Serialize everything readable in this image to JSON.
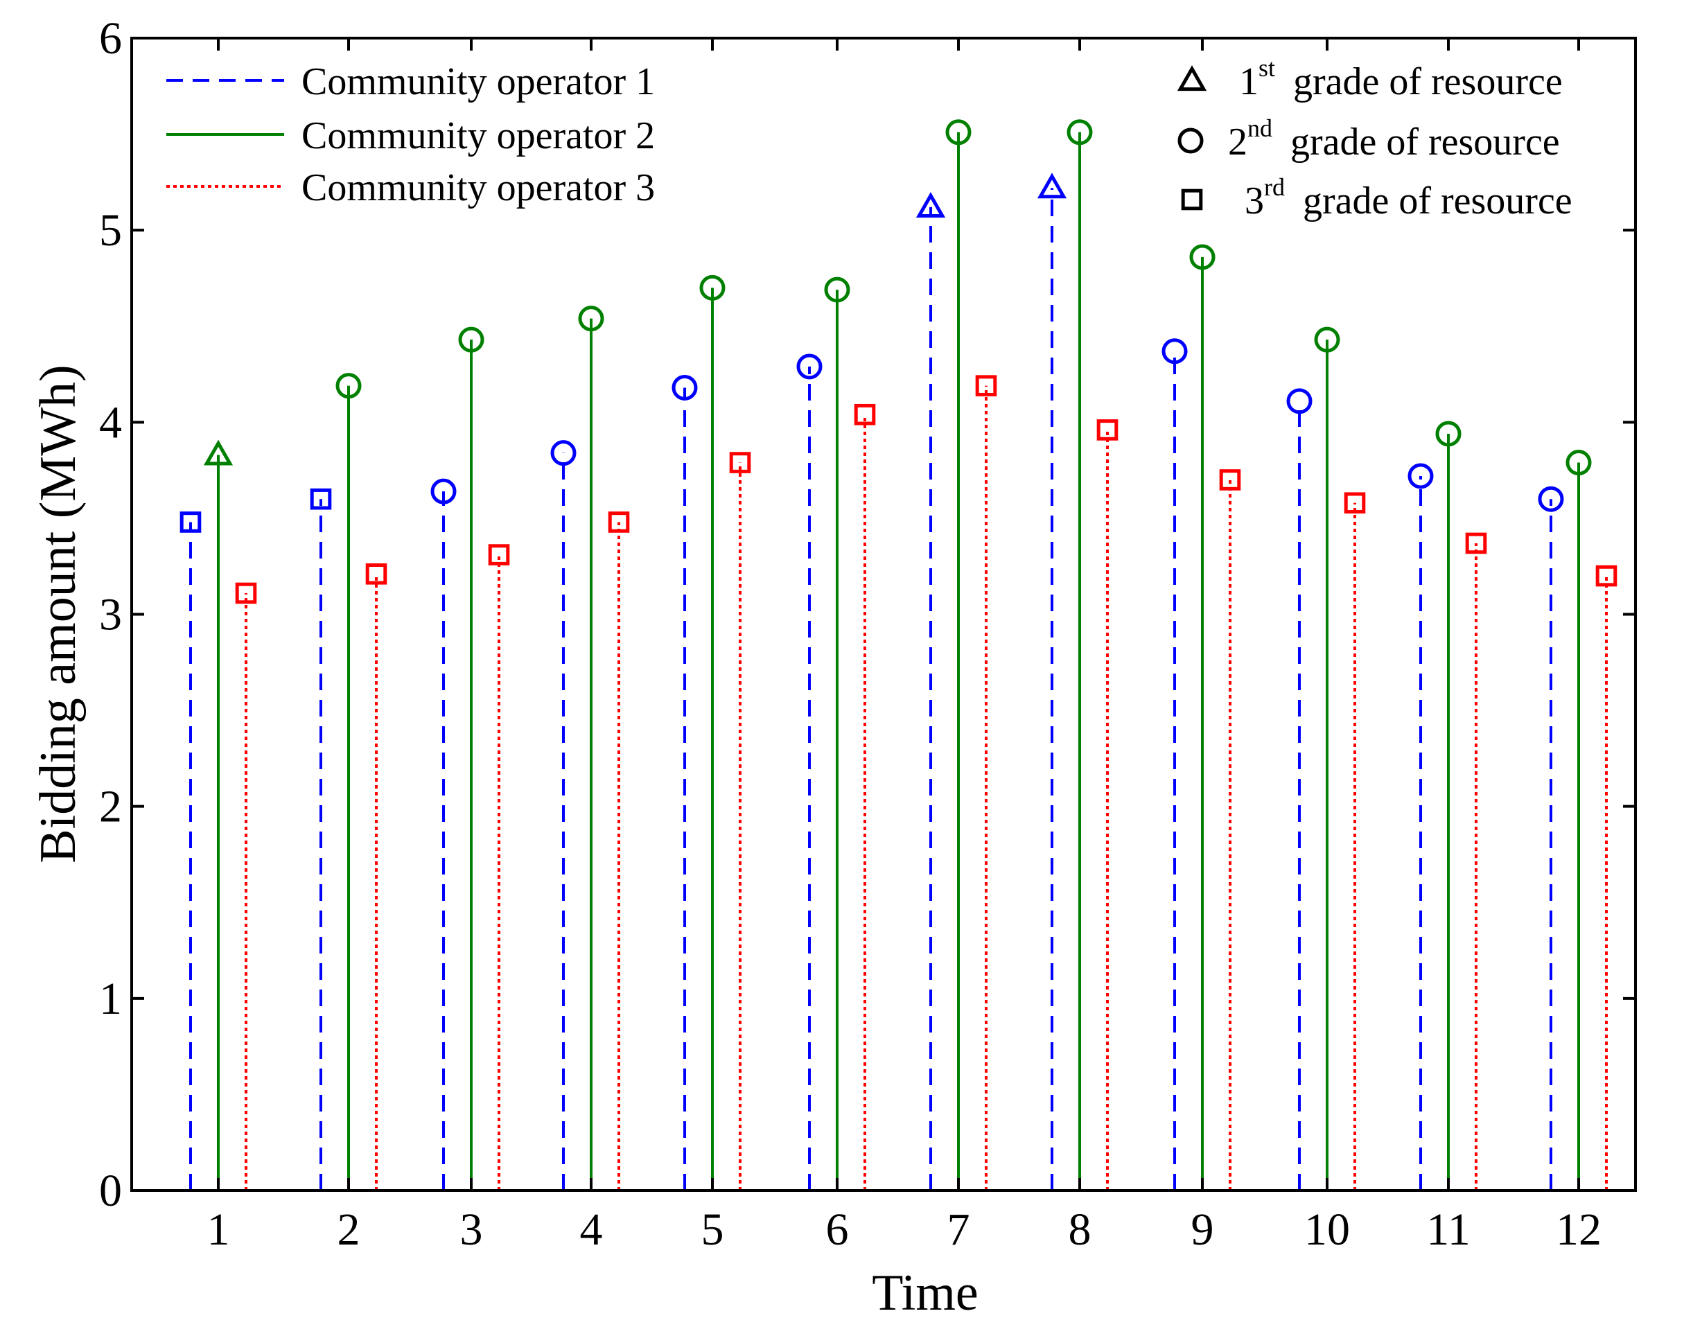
{
  "chart_data": {
    "type": "stem",
    "title": "",
    "xlabel": "Time",
    "ylabel": "Bidding amount (MWh)",
    "ylim": [
      0,
      6
    ],
    "yticks": [
      "0",
      "1",
      "2",
      "3",
      "4",
      "5",
      "6"
    ],
    "categories": [
      "1",
      "2",
      "3",
      "4",
      "5",
      "6",
      "7",
      "8",
      "9",
      "10",
      "11",
      "12"
    ],
    "series": [
      {
        "name": "Community operator 1",
        "line_style": "dashed",
        "color": "#0000ff",
        "values": [
          3.48,
          3.6,
          3.64,
          3.84,
          4.18,
          4.29,
          5.12,
          5.22,
          4.37,
          4.11,
          3.72,
          3.6
        ],
        "grades": [
          3,
          3,
          2,
          2,
          2,
          2,
          1,
          1,
          2,
          2,
          2,
          2
        ]
      },
      {
        "name": "Community operator 2",
        "line_style": "solid",
        "color": "#008000",
        "values": [
          3.83,
          4.19,
          4.43,
          4.54,
          4.7,
          4.69,
          5.51,
          5.51,
          4.86,
          4.43,
          3.94,
          3.79
        ],
        "grades": [
          1,
          2,
          2,
          2,
          2,
          2,
          2,
          2,
          2,
          2,
          2,
          2
        ]
      },
      {
        "name": "Community operator 3",
        "line_style": "dotted",
        "color": "#ff0000",
        "values": [
          3.11,
          3.21,
          3.31,
          3.48,
          3.79,
          4.04,
          4.19,
          3.96,
          3.7,
          3.58,
          3.37,
          3.2
        ],
        "grades": [
          3,
          3,
          3,
          3,
          3,
          3,
          3,
          3,
          3,
          3,
          3,
          3
        ]
      }
    ],
    "legend": {
      "position": "top-left",
      "entries": [
        "Community operator 1",
        "Community operator 2",
        "Community operator 3"
      ]
    },
    "marker_legend": {
      "position": "top-right",
      "entries": [
        {
          "marker": "triangle",
          "number": "1",
          "suffix": "st",
          "text": "grade of resource"
        },
        {
          "marker": "circle",
          "number": "2",
          "suffix": "nd",
          "text": "grade of resource"
        },
        {
          "marker": "square",
          "number": "3",
          "suffix": "rd",
          "text": "grade of resource"
        }
      ]
    },
    "grid": false
  }
}
